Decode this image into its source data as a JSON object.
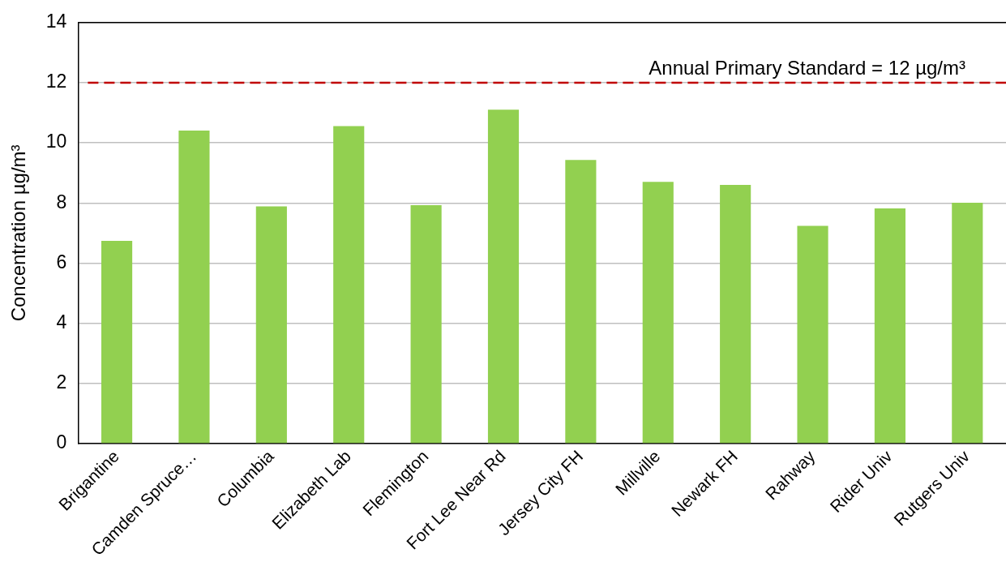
{
  "chart_data": {
    "type": "bar",
    "ylabel": "Concentration µg/m³",
    "categories": [
      "Brigantine",
      "Camden Spruce…",
      "Columbia",
      "Elizabeth Lab",
      "Flemington",
      "Fort Lee Near Rd",
      "Jersey City FH",
      "Millville",
      "Newark FH",
      "Rahway",
      "Rider Univ",
      "Rutgers Univ"
    ],
    "values": [
      6.74,
      10.41,
      7.89,
      10.56,
      7.93,
      11.1,
      9.43,
      8.7,
      8.6,
      7.24,
      7.82,
      8.01
    ],
    "color": "#92d050",
    "ylim": [
      0,
      14
    ],
    "yticks": [
      0,
      2,
      4,
      6,
      8,
      10,
      12,
      14
    ],
    "grid": "y",
    "legend": false,
    "ref_lines": [
      {
        "axis": "y",
        "value": 12,
        "label": "Annual Primary Standard = 12 µg/m³",
        "color": "#c00000",
        "line_style": "dashed"
      }
    ]
  }
}
